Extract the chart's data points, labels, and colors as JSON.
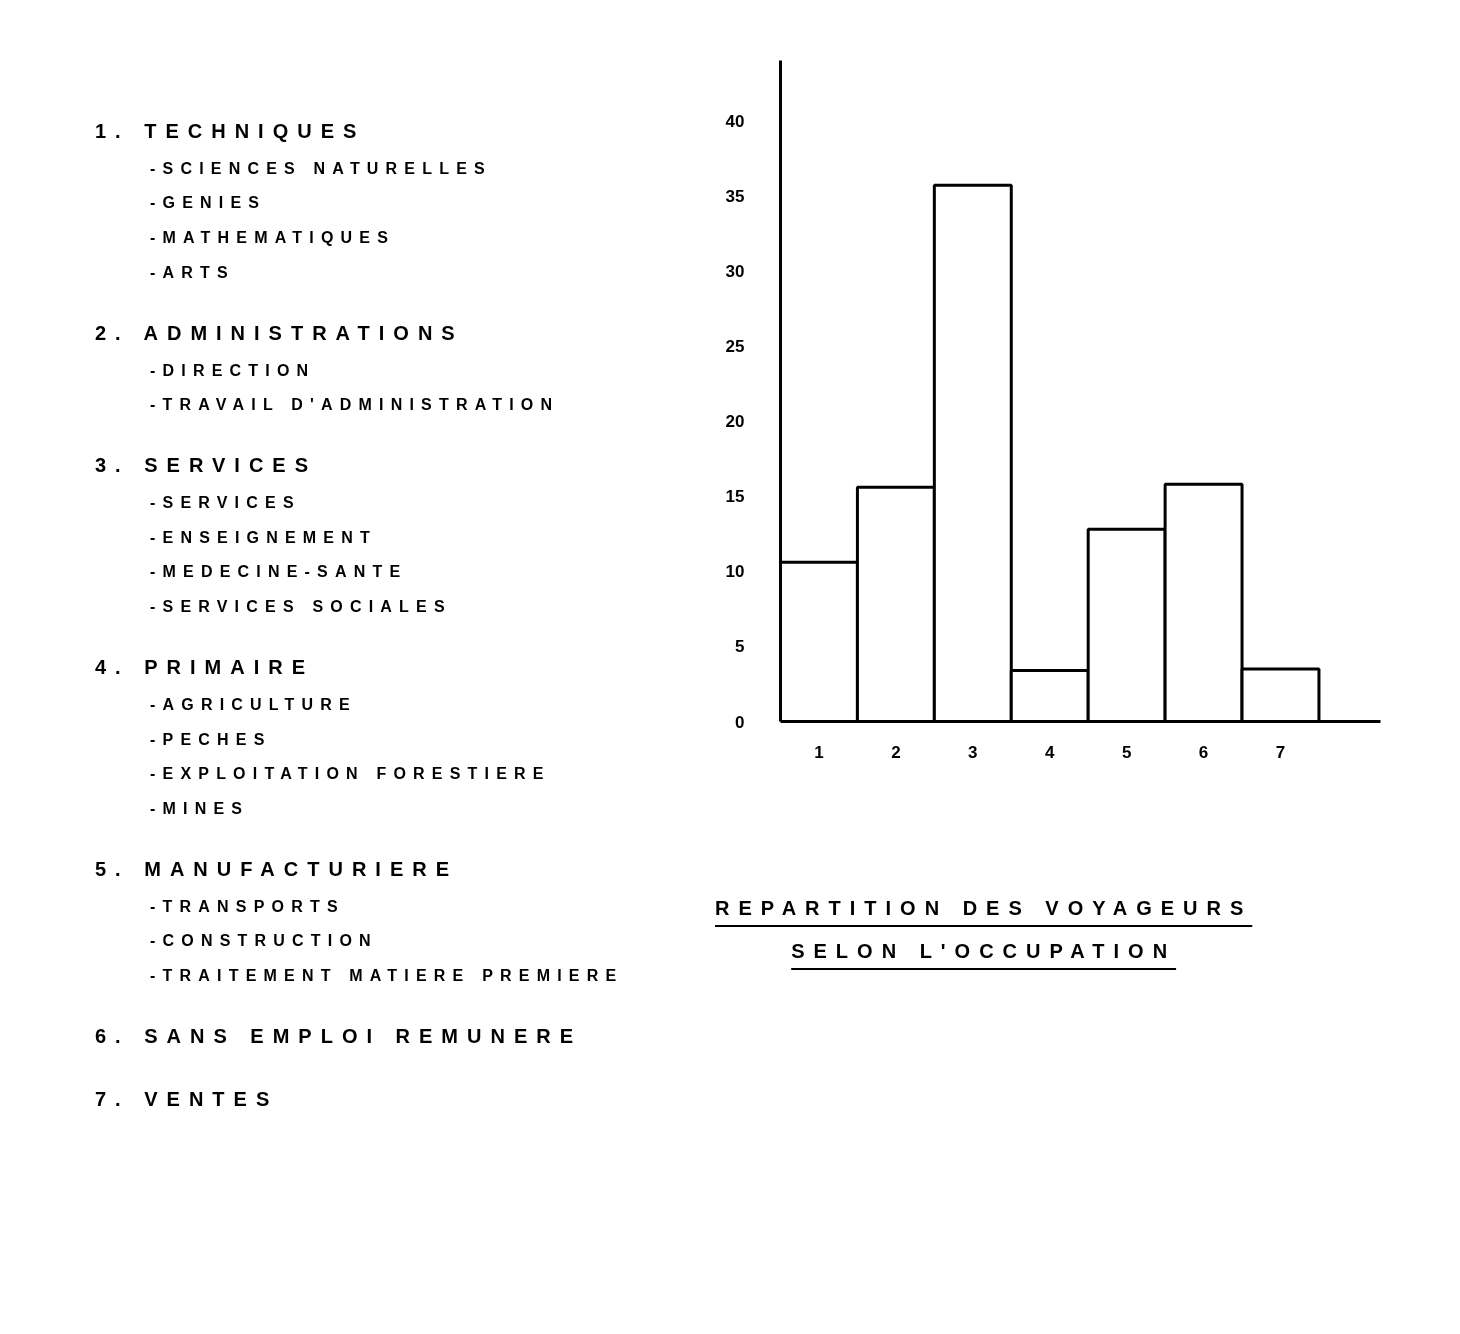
{
  "chart_data": {
    "type": "bar",
    "title": "REPARTITION DES VOYAGEURS\nSELON L'OCCUPATION",
    "categories": [
      "1",
      "2",
      "3",
      "4",
      "5",
      "6",
      "7"
    ],
    "values": [
      10.6,
      15.6,
      35.7,
      3.4,
      12.8,
      15.8,
      3.5
    ],
    "color": "#ffffff",
    "ylim": [
      0,
      44
    ],
    "yticks": [
      0,
      5,
      10,
      15,
      20,
      25,
      30,
      35,
      40
    ],
    "grid": false,
    "annotations": [
      "1. TECHNIQUES",
      "-SCIENCES NATURELLES",
      "-GENIES",
      "-MATHEMATIQUES",
      "-ARTS",
      "2. ADMINISTRATIONS",
      "-DIRECTION",
      "-TRAVAIL D'ADMINISTRATION",
      "3. SERVICES",
      "-SERVICES",
      "-ENSEIGNEMENT",
      "-MEDECINE-SANTE",
      "-SERVICES SOCIALES",
      "4. PRIMAIRE",
      "-AGRICULTURE",
      "-PECHES",
      "-EXPLOITATION FORESTIERE",
      "-MINES",
      "5. MANUFACTURIERE",
      "-TRANSPORTS",
      "-CONSTRUCTION",
      "-TRAITEMENT MATIERE PREMIERE",
      "6. SANS EMPLOI REMUNERE",
      "7. VENTES"
    ]
  }
}
